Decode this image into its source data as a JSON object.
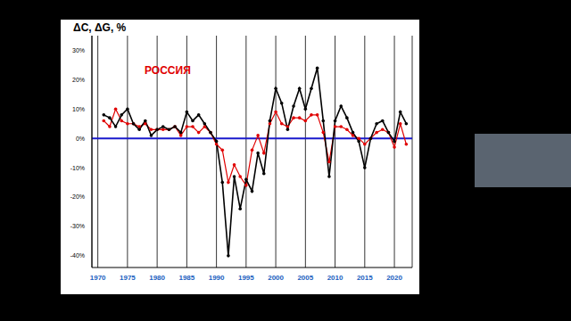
{
  "chart_data": {
    "type": "line",
    "title": "РОССИЯ",
    "y_label": "ΔC, ΔG, %",
    "x": [
      1971,
      1972,
      1973,
      1974,
      1975,
      1976,
      1977,
      1978,
      1979,
      1980,
      1981,
      1982,
      1983,
      1984,
      1985,
      1986,
      1987,
      1988,
      1989,
      1990,
      1991,
      1992,
      1993,
      1994,
      1995,
      1996,
      1997,
      1998,
      1999,
      2000,
      2001,
      2002,
      2003,
      2004,
      2005,
      2006,
      2007,
      2008,
      2009,
      2010,
      2011,
      2012,
      2013,
      2014,
      2015,
      2016,
      2017,
      2018,
      2019,
      2020,
      2021,
      2022
    ],
    "series": [
      {
        "name": "ΔC",
        "color": "#000000",
        "marker": "circle",
        "values": [
          8,
          7,
          4,
          8,
          10,
          5,
          3,
          6,
          1,
          3,
          4,
          3,
          4,
          2,
          9,
          6,
          8,
          5,
          2,
          -1,
          -15,
          -40,
          -13,
          -24,
          -14,
          -18,
          -5,
          -12,
          6,
          17,
          12,
          3,
          11,
          17,
          10,
          17,
          24,
          6,
          -13,
          6,
          11,
          7,
          2,
          -1,
          -10,
          0,
          5,
          6,
          2,
          -1,
          9,
          5
        ]
      },
      {
        "name": "ΔG",
        "color": "#e00000",
        "marker": "circle",
        "values": [
          6,
          4,
          10,
          6,
          5,
          5,
          4,
          5,
          3,
          3,
          3,
          3,
          4,
          1,
          4,
          4,
          2,
          4,
          2,
          -2,
          -4,
          -15,
          -9,
          -13,
          -16,
          -4,
          1,
          -5,
          5,
          9,
          5,
          4,
          7,
          7,
          6,
          8,
          8,
          2,
          -8,
          4,
          4,
          3,
          1,
          0,
          -2,
          0,
          2,
          3,
          2,
          -3,
          5,
          -2
        ]
      }
    ],
    "xlim": [
      1969,
      2023
    ],
    "xticks": [
      1970,
      1975,
      1980,
      1985,
      1990,
      1995,
      2000,
      2005,
      2010,
      2015,
      2020
    ],
    "ylim": [
      -44,
      35
    ],
    "yticks": [
      {
        "value": -40,
        "label": "-40%"
      },
      {
        "value": -30,
        "label": "-30%"
      },
      {
        "value": -20,
        "label": "-20%"
      },
      {
        "value": -10,
        "label": "-10%"
      },
      {
        "value": 0,
        "label": "0%"
      },
      {
        "value": 10,
        "label": "10%"
      },
      {
        "value": 20,
        "label": "20%"
      },
      {
        "value": 30,
        "label": "30%"
      }
    ],
    "reference_lines": [
      {
        "y": 0,
        "color": "#1a1acc"
      }
    ],
    "grid": true
  }
}
